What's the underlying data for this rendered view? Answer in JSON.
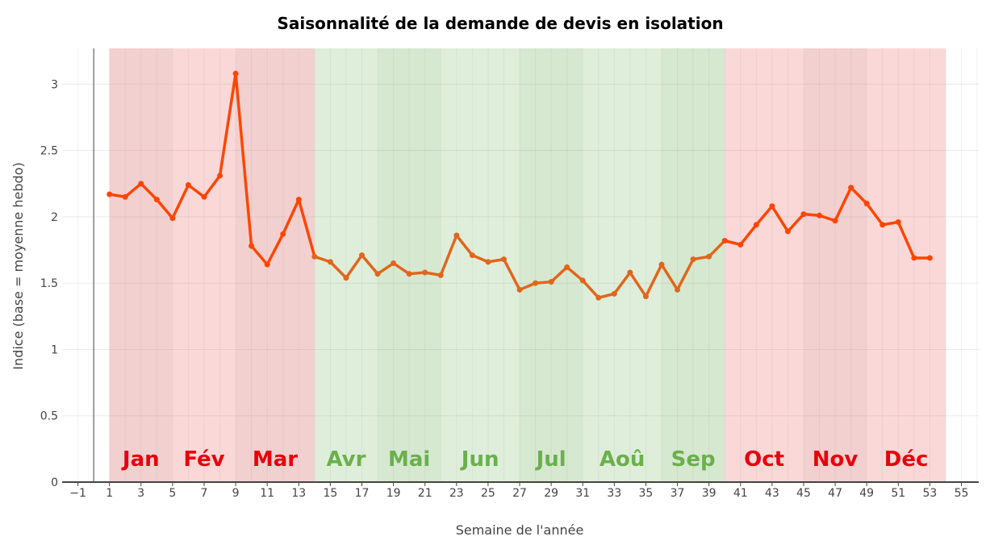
{
  "chart_data": {
    "type": "line",
    "title": "Saisonnalité de la demande de devis en isolation",
    "xlabel": "Semaine de l'année",
    "ylabel": "Indice (base = moyenne hebdo)",
    "xlim": [
      -2,
      56.1
    ],
    "ylim": [
      0,
      3.27
    ],
    "grid": true,
    "x_ticks": [
      -1,
      1,
      3,
      5,
      7,
      9,
      11,
      13,
      15,
      17,
      19,
      21,
      23,
      25,
      27,
      29,
      31,
      33,
      35,
      37,
      39,
      41,
      43,
      45,
      47,
      49,
      51,
      53,
      55
    ],
    "y_ticks": [
      0,
      0.5,
      1,
      1.5,
      2,
      2.5,
      3
    ],
    "x": [
      1,
      2,
      3,
      4,
      5,
      6,
      7,
      8,
      9,
      10,
      11,
      12,
      13,
      14,
      15,
      16,
      17,
      18,
      19,
      20,
      21,
      22,
      23,
      24,
      25,
      26,
      27,
      28,
      29,
      30,
      31,
      32,
      33,
      34,
      35,
      36,
      37,
      38,
      39,
      40,
      41,
      42,
      43,
      44,
      45,
      46,
      47,
      48,
      49,
      50,
      51,
      52,
      53
    ],
    "y": [
      2.17,
      2.15,
      2.25,
      2.13,
      1.99,
      2.24,
      2.15,
      2.31,
      3.08,
      1.78,
      1.64,
      1.87,
      2.13,
      1.7,
      1.66,
      1.54,
      1.71,
      1.57,
      1.65,
      1.57,
      1.58,
      1.56,
      1.86,
      1.71,
      1.66,
      1.68,
      1.45,
      1.5,
      1.51,
      1.62,
      1.52,
      1.39,
      1.42,
      1.58,
      1.4,
      1.64,
      1.45,
      1.68,
      1.7,
      1.82,
      1.79,
      1.94,
      2.08,
      1.89,
      2.02,
      2.01,
      1.97,
      2.22,
      2.1,
      1.94,
      1.96,
      1.69,
      1.69
    ],
    "line_colors": {
      "high_season": "#FF4500",
      "low_season": "#E0661C"
    },
    "months": [
      {
        "label": "Jan",
        "start": 1,
        "end": 5,
        "season": "high",
        "shade": "dark"
      },
      {
        "label": "Fév",
        "start": 5,
        "end": 9,
        "season": "high",
        "shade": "light"
      },
      {
        "label": "Mar",
        "start": 9,
        "end": 14,
        "season": "high",
        "shade": "dark"
      },
      {
        "label": "Avr",
        "start": 14,
        "end": 18,
        "season": "low",
        "shade": "light"
      },
      {
        "label": "Mai",
        "start": 18,
        "end": 22,
        "season": "low",
        "shade": "dark"
      },
      {
        "label": "Jun",
        "start": 22,
        "end": 27,
        "season": "low",
        "shade": "light"
      },
      {
        "label": "Jul",
        "start": 27,
        "end": 31,
        "season": "low",
        "shade": "dark"
      },
      {
        "label": "Aoû",
        "start": 31,
        "end": 36,
        "season": "low",
        "shade": "light"
      },
      {
        "label": "Sep",
        "start": 36,
        "end": 40,
        "season": "low",
        "shade": "dark"
      },
      {
        "label": "Oct",
        "start": 40,
        "end": 45,
        "season": "high",
        "shade": "light"
      },
      {
        "label": "Nov",
        "start": 45,
        "end": 49,
        "season": "high",
        "shade": "dark"
      },
      {
        "label": "Déc",
        "start": 49,
        "end": 54,
        "season": "high",
        "shade": "light"
      }
    ],
    "colors": {
      "high_light": "#FAD8D8",
      "high_dark": "#F2D0D0",
      "low_light": "#DFEEDA",
      "low_dark": "#D6E8D0",
      "high_label": "#E8000B",
      "low_label": "#6AB04C"
    }
  }
}
